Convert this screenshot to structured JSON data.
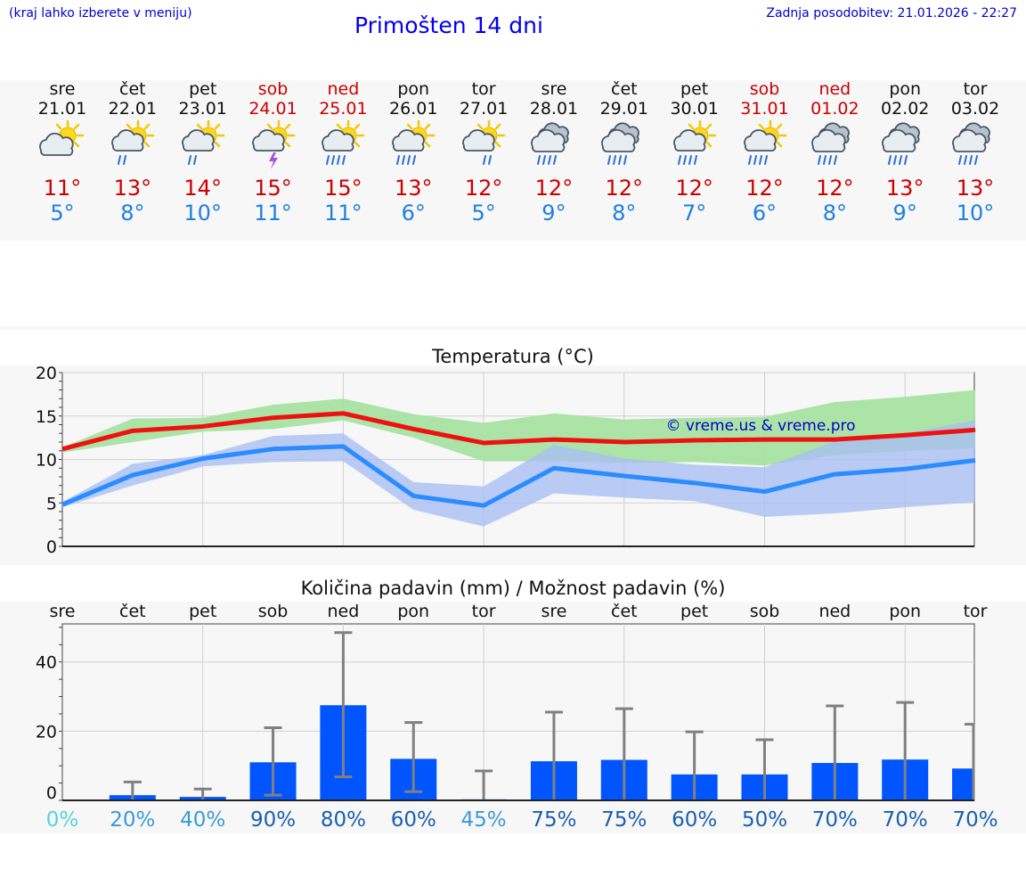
{
  "header": {
    "hint": "(kraj lahko izberete v meniju)",
    "title": "Primošten 14 dni",
    "updated": "Zadnja posodobitev: 21.01.2026 - 22:27"
  },
  "days": [
    {
      "name": "sre",
      "date": "21.01",
      "weekend": false,
      "icon": "partly-cloudy-sun-icon",
      "hi": "11°",
      "lo": "5°"
    },
    {
      "name": "čet",
      "date": "22.01",
      "weekend": false,
      "icon": "sun-cloud-rain-icon",
      "hi": "13°",
      "lo": "8°"
    },
    {
      "name": "pet",
      "date": "23.01",
      "weekend": false,
      "icon": "sun-cloud-rain-icon",
      "hi": "14°",
      "lo": "10°"
    },
    {
      "name": "sob",
      "date": "24.01",
      "weekend": true,
      "icon": "sun-cloud-thunder-icon",
      "hi": "15°",
      "lo": "11°"
    },
    {
      "name": "ned",
      "date": "25.01",
      "weekend": true,
      "icon": "sun-cloud-heavy-rain-icon",
      "hi": "15°",
      "lo": "11°"
    },
    {
      "name": "pon",
      "date": "26.01",
      "weekend": false,
      "icon": "sun-cloud-heavy-rain-icon",
      "hi": "13°",
      "lo": "6°"
    },
    {
      "name": "tor",
      "date": "27.01",
      "weekend": false,
      "icon": "sun-cloud-light-rain-icon",
      "hi": "12°",
      "lo": "5°"
    },
    {
      "name": "sre",
      "date": "28.01",
      "weekend": false,
      "icon": "cloud-heavy-rain-icon",
      "hi": "12°",
      "lo": "9°"
    },
    {
      "name": "čet",
      "date": "29.01",
      "weekend": false,
      "icon": "cloud-heavy-rain-icon",
      "hi": "12°",
      "lo": "8°"
    },
    {
      "name": "pet",
      "date": "30.01",
      "weekend": false,
      "icon": "sun-cloud-heavy-rain-icon",
      "hi": "12°",
      "lo": "7°"
    },
    {
      "name": "sob",
      "date": "31.01",
      "weekend": true,
      "icon": "sun-cloud-heavy-rain-icon",
      "hi": "12°",
      "lo": "6°"
    },
    {
      "name": "ned",
      "date": "01.02",
      "weekend": true,
      "icon": "cloud-heavy-rain-icon",
      "hi": "12°",
      "lo": "8°"
    },
    {
      "name": "pon",
      "date": "02.02",
      "weekend": false,
      "icon": "cloud-heavy-rain-icon",
      "hi": "13°",
      "lo": "9°"
    },
    {
      "name": "tor",
      "date": "03.02",
      "weekend": false,
      "icon": "cloud-heavy-rain-icon",
      "hi": "13°",
      "lo": "10°"
    }
  ],
  "colors": {
    "max_line": "#ee1111",
    "min_line": "#2a8cff",
    "max_band": "#a6e3a1",
    "min_band": "#a9bff2",
    "bar": "#0055ff",
    "whisker": "#808080",
    "weekend": "#cc0000",
    "low_temp": "#1e7fe0"
  },
  "chart_data": [
    {
      "type": "line",
      "title": "Temperatura (°C)",
      "watermark": "© vreme.us & vreme.pro",
      "ylim": [
        0,
        20
      ],
      "yticks": [
        0,
        5,
        10,
        15,
        20
      ],
      "x": [
        0,
        1,
        2,
        3,
        4,
        5,
        6,
        7,
        8,
        9,
        10,
        11,
        12,
        13
      ],
      "series": [
        {
          "name": "max",
          "values": [
            11.2,
            13.3,
            13.8,
            14.8,
            15.3,
            13.5,
            11.9,
            12.3,
            12.0,
            12.2,
            12.3,
            12.3,
            12.8,
            13.4
          ],
          "band_low": [
            10.8,
            12.0,
            13.2,
            13.5,
            14.5,
            12.5,
            9.8,
            9.8,
            9.6,
            9.7,
            9.3,
            10.5,
            11.0,
            11.3
          ],
          "band_high": [
            11.4,
            14.7,
            14.8,
            16.3,
            17.0,
            15.2,
            14.2,
            15.3,
            14.6,
            14.8,
            14.9,
            16.6,
            17.2,
            18.0
          ]
        },
        {
          "name": "min",
          "values": [
            4.8,
            8.2,
            10.1,
            11.2,
            11.5,
            5.8,
            4.7,
            9.0,
            8.1,
            7.3,
            6.3,
            8.3,
            8.9,
            9.9
          ],
          "band_low": [
            4.5,
            7.0,
            9.2,
            9.7,
            9.8,
            4.2,
            2.3,
            6.1,
            5.6,
            5.2,
            3.4,
            3.8,
            4.5,
            5.1
          ],
          "band_high": [
            5.1,
            9.5,
            10.5,
            12.7,
            13.0,
            7.4,
            6.9,
            11.7,
            10.1,
            9.4,
            9.1,
            12.1,
            13.0,
            14.5
          ]
        }
      ]
    },
    {
      "type": "bar",
      "title": "Količina padavin (mm) / Možnost padavin (%)",
      "categories": [
        "sre",
        "čet",
        "pet",
        "sob",
        "ned",
        "pon",
        "tor",
        "sre",
        "čet",
        "pet",
        "sob",
        "ned",
        "pon",
        "tor"
      ],
      "values": [
        0,
        1.5,
        1,
        11,
        27.5,
        12,
        0.3,
        11.3,
        11.7,
        7.5,
        7.5,
        10.8,
        11.8,
        9.2
      ],
      "whisker_low": [
        0,
        0,
        0,
        1.5,
        6.8,
        2.5,
        0,
        0,
        0,
        0,
        0,
        0,
        0,
        0
      ],
      "whisker_high": [
        0,
        5.3,
        3.3,
        21,
        48.5,
        22.5,
        8.5,
        25.5,
        26.5,
        19.8,
        17.5,
        27.3,
        28.3,
        22
      ],
      "ylim": [
        0,
        51
      ],
      "yticks": [
        0,
        20,
        40
      ],
      "probability_labels": [
        "0%",
        "20%",
        "40%",
        "90%",
        "80%",
        "60%",
        "45%",
        "75%",
        "75%",
        "60%",
        "50%",
        "70%",
        "70%",
        "70%"
      ],
      "probability": [
        0,
        20,
        40,
        90,
        80,
        60,
        45,
        75,
        75,
        60,
        50,
        70,
        70,
        70
      ]
    }
  ]
}
